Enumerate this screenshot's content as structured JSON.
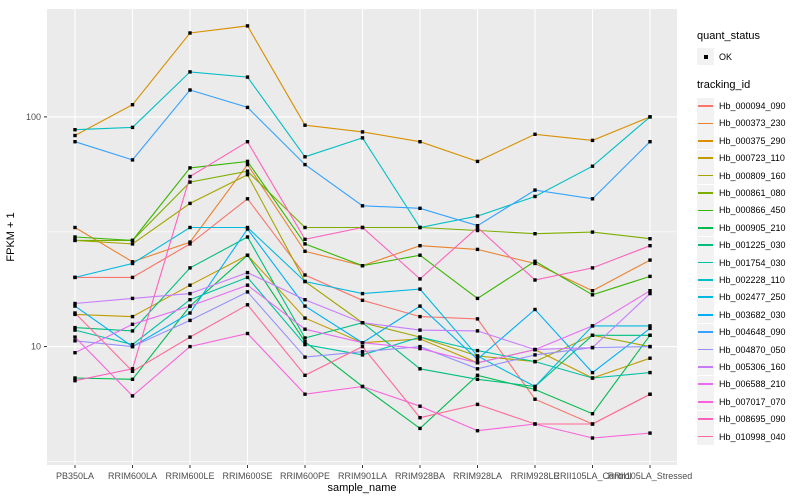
{
  "style": {
    "panel_bg": "#EBEBEB",
    "grid_color": "#FFFFFF",
    "tick_color": "#333333",
    "tick_label_color": "#4D4D4D",
    "point_color": "#000000"
  },
  "chart_data": {
    "type": "line",
    "title": "",
    "xlabel": "sample_name",
    "ylabel": "FPKM + 1",
    "y_scale": "log10",
    "ylim": [
      3.05,
      295
    ],
    "y_ticks": [
      "10",
      "100"
    ],
    "y_tick_values": [
      10,
      100
    ],
    "y_minor_tick_values": [
      3.16,
      31.6
    ],
    "grid": "on",
    "legend_position": "right",
    "categories": [
      "PB350LA",
      "RRIM600LA",
      "RRIM600LE",
      "RRIM600SE",
      "RRIM600PE",
      "RRIM901LA",
      "RRIM928BA",
      "RRIM928LA",
      "RRIM928LE",
      "RRII105LA_Control",
      "RRII105LA_Stressed"
    ],
    "legend_quant": {
      "title": "quant_status",
      "items": [
        {
          "label": "OK",
          "shape": "point"
        }
      ]
    },
    "legend_tracking": {
      "title": "tracking_id"
    },
    "series": [
      {
        "name": "Hb_000094_090",
        "color": "#F8766D",
        "values": [
          20,
          20,
          28,
          44,
          20.5,
          15.9,
          13.5,
          13.2,
          5.9,
          4.6,
          6.2
        ]
      },
      {
        "name": "Hb_000373_230",
        "color": "#EA8331",
        "values": [
          33,
          23.4,
          28.5,
          62,
          26,
          22.5,
          27.5,
          26.5,
          23,
          17.5,
          23.8
        ]
      },
      {
        "name": "Hb_000375_290",
        "color": "#D89000",
        "values": [
          83,
          113,
          232,
          249,
          92,
          86,
          78,
          64,
          84,
          79,
          100
        ]
      },
      {
        "name": "Hb_000723_110",
        "color": "#C09B00",
        "values": [
          13.8,
          13.5,
          18.5,
          25,
          13.3,
          10.4,
          10.8,
          8.5,
          9.7,
          7.3,
          8.9
        ]
      },
      {
        "name": "Hb_000809_160",
        "color": "#A3A500",
        "values": [
          29,
          28,
          42,
          56,
          19.2,
          12.7,
          11,
          9.1,
          8.6,
          11.2,
          10
        ]
      },
      {
        "name": "Hb_000861_080",
        "color": "#7CAE00",
        "values": [
          29,
          29,
          52,
          58,
          33,
          33,
          33,
          32,
          31,
          31.5,
          29.5
        ]
      },
      {
        "name": "Hb_000866_450",
        "color": "#39B600",
        "values": [
          30,
          29,
          60,
          64,
          28,
          22.5,
          25,
          16.2,
          23.5,
          16.8,
          20.2
        ]
      },
      {
        "name": "Hb_000905_210",
        "color": "#00BB4E",
        "values": [
          7.3,
          7.2,
          15,
          25,
          10.5,
          6.7,
          4.4,
          7.5,
          6.5,
          5.1,
          11.2
        ]
      },
      {
        "name": "Hb_001225_030",
        "color": "#00BF7D",
        "values": [
          12.1,
          11.7,
          22,
          30,
          10.9,
          12.7,
          8,
          7.2,
          6.7,
          11.2,
          11.2
        ]
      },
      {
        "name": "Hb_001754_030",
        "color": "#00C1A3",
        "values": [
          11.8,
          10.2,
          16,
          20,
          10.2,
          9.2,
          11,
          9.6,
          8.6,
          7.3,
          7.7
        ]
      },
      {
        "name": "Hb_002228_110",
        "color": "#00BFC4",
        "values": [
          88,
          90,
          157,
          149,
          67,
          81,
          33,
          37,
          45,
          61,
          100
        ]
      },
      {
        "name": "Hb_002477_250",
        "color": "#00BAE0",
        "values": [
          20,
          23,
          33,
          33,
          19.2,
          17,
          17.8,
          9.1,
          6.7,
          12.3,
          12.3
        ]
      },
      {
        "name": "Hb_003682_030",
        "color": "#00B0F6",
        "values": [
          15,
          10,
          14,
          32.5,
          15,
          10.4,
          15,
          8.8,
          14.5,
          7.7,
          12
        ]
      },
      {
        "name": "Hb_004648_090",
        "color": "#35A2FF",
        "values": [
          78,
          65,
          131,
          110,
          62,
          41,
          40,
          33.6,
          48,
          44,
          78
        ]
      },
      {
        "name": "Hb_004870_050",
        "color": "#9590FF",
        "values": [
          10.6,
          10,
          13,
          17.3,
          9,
          9.5,
          10,
          8,
          9.2,
          9.9,
          10
        ]
      },
      {
        "name": "Hb_005306_160",
        "color": "#C77CFF",
        "values": [
          15.4,
          16.2,
          17,
          21,
          16,
          12.7,
          11.8,
          11.7,
          9.7,
          9.9,
          17
        ]
      },
      {
        "name": "Hb_006588_210",
        "color": "#E76BF3",
        "values": [
          9.4,
          12.5,
          15,
          18.5,
          11.9,
          10.4,
          9.8,
          8.5,
          9.7,
          12.3,
          17.5
        ]
      },
      {
        "name": "Hb_007017_070",
        "color": "#FA62DB",
        "values": [
          11,
          6.1,
          10,
          11.4,
          6.2,
          6.7,
          5.5,
          4.3,
          4.6,
          4.0,
          4.2
        ]
      },
      {
        "name": "Hb_008695_090",
        "color": "#FF62BC",
        "values": [
          7.1,
          8,
          55,
          78,
          29.3,
          33,
          19.7,
          33,
          19.5,
          22,
          27.5
        ]
      },
      {
        "name": "Hb_010998_040",
        "color": "#FF6A98",
        "values": [
          14,
          7.8,
          11,
          15.2,
          7.5,
          10,
          4.9,
          5.6,
          4.6,
          4.6,
          6.2
        ]
      }
    ]
  }
}
